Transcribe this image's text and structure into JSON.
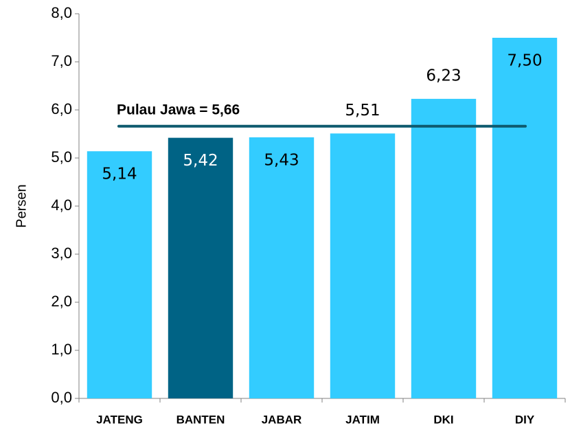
{
  "chart_data": {
    "type": "bar",
    "y_label": "Persen",
    "categories": [
      "JATENG",
      "BANTEN",
      "JABAR",
      "JATIM",
      "DKI",
      "DIY"
    ],
    "values": [
      5.14,
      5.42,
      5.43,
      5.51,
      6.23,
      7.5
    ],
    "value_labels": [
      "5,14",
      "5,42",
      "5,43",
      "5,51",
      "6,23",
      "7,50"
    ],
    "colors": [
      "#33ccff",
      "#006385",
      "#33ccff",
      "#33ccff",
      "#33ccff",
      "#33ccff"
    ],
    "reference_line": {
      "value": 5.66,
      "label": "Pulau Jawa = 5,66",
      "color": "#0e5a6e"
    },
    "ylim": [
      0,
      8
    ],
    "yticks": [
      {
        "value": 0,
        "label": "0,0"
      },
      {
        "value": 1,
        "label": "1,0"
      },
      {
        "value": 2,
        "label": "2,0"
      },
      {
        "value": 3,
        "label": "3,0"
      },
      {
        "value": 4,
        "label": "4,0"
      },
      {
        "value": 5,
        "label": "5,0"
      },
      {
        "value": 6,
        "label": "6,0"
      },
      {
        "value": 7,
        "label": "7,0"
      },
      {
        "value": 8,
        "label": "8,0"
      }
    ]
  }
}
